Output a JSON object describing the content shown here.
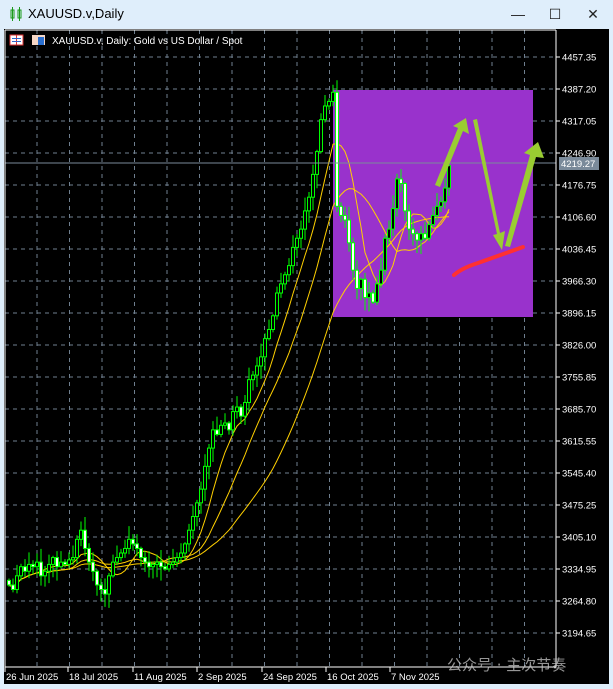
{
  "window": {
    "title": "XAUUSD.v,Daily",
    "minimize": "—",
    "maximize": "☐",
    "close": "✕"
  },
  "chart_header": "XAUUSD.v, Daily:  Gold vs US Dollar / Spot",
  "watermark": "公众号 · 主次节奏",
  "colors": {
    "background": "#000000",
    "candle": "#00ff00",
    "moving_average": "#ffd000",
    "annotation_box": "#9932cc",
    "annotation_arrows": "#9acd32",
    "annotation_line": "#ff3030",
    "grid": "#6f7f8f"
  },
  "chart_data": {
    "type": "candlestick",
    "symbol": "XAUUSD.v",
    "timeframe": "Daily",
    "ylim": [
      3194.65,
      4457.35
    ],
    "y_ticks": [
      "4457.35",
      "4387.20",
      "4317.05",
      "4246.90",
      "4176.75",
      "4106.60",
      "4036.45",
      "3966.30",
      "3896.15",
      "3826.00",
      "3755.85",
      "3685.70",
      "3615.55",
      "3545.40",
      "3475.25",
      "3405.10",
      "3334.95",
      "3264.80",
      "3194.65"
    ],
    "x_ticks": [
      "26 Jun 2025",
      "18 Jul 2025",
      "11 Aug 2025",
      "2 Sep 2025",
      "24 Sep 2025",
      "16 Oct 2025",
      "7 Nov 2025"
    ],
    "current_price": "4219.27",
    "grid": true,
    "closes": [
      3300,
      3290,
      3320,
      3340,
      3330,
      3345,
      3340,
      3350,
      3320,
      3330,
      3345,
      3360,
      3340,
      3350,
      3345,
      3355,
      3360,
      3400,
      3420,
      3380,
      3350,
      3330,
      3300,
      3290,
      3280,
      3320,
      3350,
      3360,
      3370,
      3380,
      3400,
      3390,
      3380,
      3360,
      3350,
      3340,
      3345,
      3350,
      3340,
      3335,
      3345,
      3350,
      3360,
      3370,
      3390,
      3420,
      3450,
      3480,
      3510,
      3560,
      3600,
      3640,
      3630,
      3650,
      3655,
      3640,
      3680,
      3690,
      3670,
      3700,
      3750,
      3760,
      3780,
      3800,
      3840,
      3860,
      3890,
      3940,
      3960,
      3980,
      4000,
      4040,
      4060,
      4080,
      4120,
      4150,
      4200,
      4250,
      4320,
      4350,
      4360,
      4380,
      4130,
      4110,
      4100,
      4050,
      3990,
      3950,
      3970,
      3930,
      3940,
      3920,
      3960,
      3990,
      4060,
      4080,
      4125,
      4190,
      4180,
      4120,
      4080,
      4070,
      4056,
      4070,
      4060,
      4090,
      4110,
      4130,
      4140,
      4170,
      4219.27
    ]
  }
}
